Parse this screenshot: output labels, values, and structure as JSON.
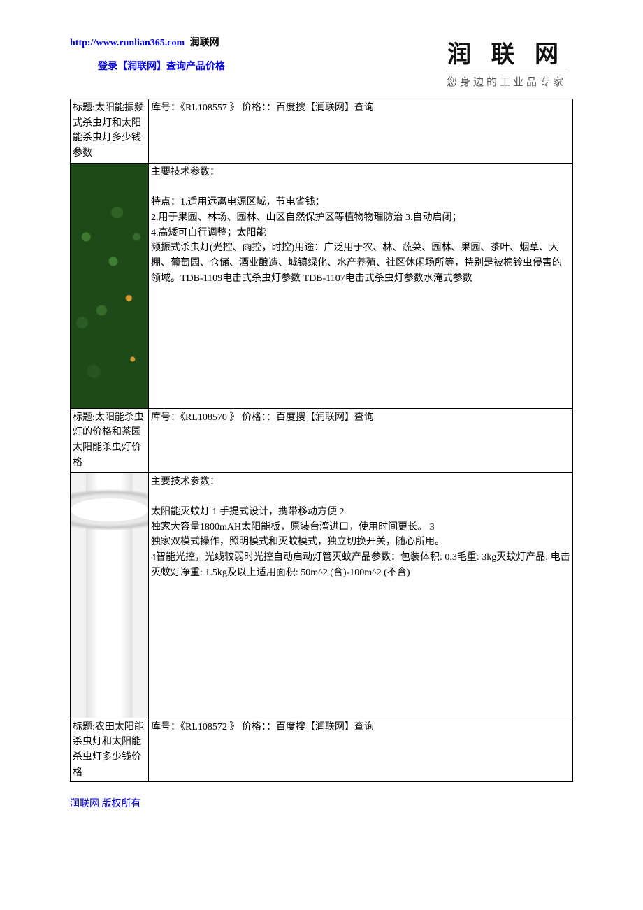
{
  "header": {
    "url": "http://www.runlian365.com",
    "site_name": "润联网",
    "login_text": "登录【润联网】查询产品价格",
    "logo_main": "润 联 网",
    "logo_sub": "您身边的工业品专家"
  },
  "rows": [
    {
      "title_label": "标题:",
      "title": "太阳能振频式杀虫灯和太阳能杀虫灯多少钱参数",
      "info": "库号：《RL108557 》 价格：：百度搜【润联网】查询",
      "spec_heading": "主要技术参数：",
      "spec_body": "特点：1.适用远离电源区域，节电省钱；\n2.用于果园、林场、园林、山区自然保护区等植物物理防治 3.自动启闭；\n4.高矮可自行调整；太阳能\n频振式杀虫灯(光控、雨控，时控)用途：广泛用于农、林、蔬菜、园林、果园、茶叶、烟草、大棚、葡萄园、仓储、酒业酿造、城镇绿化、水产养殖、社区休闲场所等，特别是被棉铃虫侵害的领域。TDB-1109电击式杀虫灯参数 TDB-1107电击式杀虫灯参数水淹式参数",
      "image": "plants"
    },
    {
      "title_label": "标题:",
      "title": "太阳能杀虫灯的价格和茶园太阳能杀虫灯价格",
      "info": "库号：《RL108570 》 价格：：百度搜【润联网】查询",
      "spec_heading": "主要技术参数：",
      "spec_body": "太阳能灭蚊灯 1 手提式设计，携带移动方便 2\n独家大容量1800mAH太阳能板，原装台湾进口，使用时间更长。 3\n独家双模式操作，照明模式和灭蚊模式，独立切换开关，随心所用。\n4智能光控，光线较弱时光控自动启动灯管灭蚊产品参数：包装体积: 0.3毛重: 3kg灭蚊灯产品: 电击灭蚊灯净重: 1.5kg及以上适用面积: 50m^2 (含)-100m^2 (不含)",
      "image": "lamp"
    },
    {
      "title_label": "标题:",
      "title": "农田太阳能杀虫灯和太阳能杀虫灯多少钱价格",
      "info": "库号：《RL108572 》 价格：：百度搜【润联网】查询",
      "spec_heading": "",
      "spec_body": "",
      "image": ""
    }
  ],
  "footer": {
    "text": "润联网 版权所有"
  }
}
